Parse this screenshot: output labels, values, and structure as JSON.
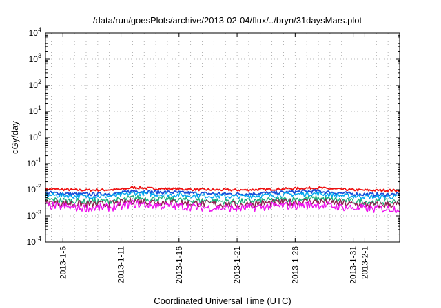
{
  "chart_data": {
    "type": "line",
    "title": "/data/run/goesPlots/archive/2013-02-04/flux/../bryn/31daysMars.plot",
    "xlabel": "Coordinated Universal Time (UTC)",
    "ylabel": "cGy/day",
    "yscale": "log",
    "ylim": [
      0.0001,
      10000
    ],
    "y_ticks": [
      {
        "base": "10",
        "exp": "-4"
      },
      {
        "base": "10",
        "exp": "-3"
      },
      {
        "base": "10",
        "exp": "-2"
      },
      {
        "base": "10",
        "exp": "-1"
      },
      {
        "base": "10",
        "exp": "0"
      },
      {
        "base": "10",
        "exp": "1"
      },
      {
        "base": "10",
        "exp": "2"
      },
      {
        "base": "10",
        "exp": "3"
      },
      {
        "base": "10",
        "exp": "4"
      }
    ],
    "xlim": [
      "2013-01-04T12:00",
      "2013-02-04T00:00"
    ],
    "x_ticks": [
      {
        "label": "2013-1-6",
        "date": "2013-01-06"
      },
      {
        "label": "2013-1-11",
        "date": "2013-01-11"
      },
      {
        "label": "2013-1-16",
        "date": "2013-01-16"
      },
      {
        "label": "2013-1-21",
        "date": "2013-01-21"
      },
      {
        "label": "2013-1-26",
        "date": "2013-01-26"
      },
      {
        "label": "2013-1-31",
        "date": "2013-01-31"
      },
      {
        "label": "2013-2-1",
        "date": "2013-02-01"
      }
    ],
    "grid": true,
    "grid_style": "dotted",
    "legend": "none",
    "x_sample_dates": [
      "2013-01-05",
      "2013-01-06",
      "2013-01-07",
      "2013-01-08",
      "2013-01-09",
      "2013-01-10",
      "2013-01-11",
      "2013-01-12",
      "2013-01-13",
      "2013-01-14",
      "2013-01-15",
      "2013-01-16",
      "2013-01-17",
      "2013-01-18",
      "2013-01-19",
      "2013-01-20",
      "2013-01-21",
      "2013-01-22",
      "2013-01-23",
      "2013-01-24",
      "2013-01-25",
      "2013-01-26",
      "2013-01-27",
      "2013-01-28",
      "2013-01-29",
      "2013-01-30",
      "2013-01-31",
      "2013-02-01",
      "2013-02-02",
      "2013-02-03"
    ],
    "series": [
      {
        "color": "#ee1111",
        "values": [
          0.0105,
          0.0102,
          0.0098,
          0.0096,
          0.0097,
          0.0099,
          0.0103,
          0.0122,
          0.0115,
          0.011,
          0.0108,
          0.0106,
          0.0102,
          0.0101,
          0.0099,
          0.0098,
          0.0097,
          0.0099,
          0.0102,
          0.0104,
          0.0108,
          0.0112,
          0.0115,
          0.0118,
          0.0108,
          0.0103,
          0.0098,
          0.0096,
          0.0094,
          0.0095
        ]
      },
      {
        "color": "#1a4fd8",
        "values": [
          0.0075,
          0.0072,
          0.0069,
          0.0067,
          0.0068,
          0.007,
          0.0074,
          0.009,
          0.0086,
          0.0082,
          0.008,
          0.0078,
          0.0074,
          0.0072,
          0.007,
          0.0069,
          0.0068,
          0.007,
          0.0073,
          0.0075,
          0.0079,
          0.0083,
          0.0085,
          0.0088,
          0.0079,
          0.0074,
          0.0069,
          0.0067,
          0.0065,
          0.0066
        ]
      },
      {
        "color": "#00a7ef",
        "values": [
          0.0062,
          0.006,
          0.0057,
          0.0055,
          0.0056,
          0.0058,
          0.0061,
          0.0074,
          0.007,
          0.0067,
          0.0065,
          0.0063,
          0.006,
          0.0059,
          0.0057,
          0.0056,
          0.0055,
          0.0057,
          0.0059,
          0.0061,
          0.0064,
          0.0067,
          0.0069,
          0.0071,
          0.0064,
          0.006,
          0.0056,
          0.0055,
          0.0053,
          0.0054
        ]
      },
      {
        "color": "#19b07d",
        "values": [
          0.0041,
          0.0039,
          0.0037,
          0.0035,
          0.0036,
          0.0037,
          0.004,
          0.0049,
          0.0046,
          0.0044,
          0.0043,
          0.0041,
          0.0039,
          0.0038,
          0.0037,
          0.0036,
          0.0035,
          0.0037,
          0.0038,
          0.004,
          0.0042,
          0.0044,
          0.0045,
          0.0047,
          0.0042,
          0.0039,
          0.0036,
          0.0035,
          0.0034,
          0.0035
        ]
      },
      {
        "color": "#8f1f4f",
        "values": [
          0.0032,
          0.003,
          0.0029,
          0.0028,
          0.0028,
          0.0029,
          0.0031,
          0.0038,
          0.0036,
          0.0034,
          0.0033,
          0.0032,
          0.003,
          0.0029,
          0.0028,
          0.0028,
          0.0027,
          0.0028,
          0.003,
          0.0031,
          0.0033,
          0.0034,
          0.0035,
          0.0036,
          0.0033,
          0.003,
          0.0028,
          0.0027,
          0.0026,
          0.0027
        ]
      },
      {
        "color": "#ee11ee",
        "values": [
          0.0024,
          0.0022,
          0.0021,
          0.002,
          0.002,
          0.0021,
          0.0023,
          0.0029,
          0.0027,
          0.0025,
          0.0024,
          0.0023,
          0.0022,
          0.0021,
          0.002,
          0.002,
          0.0019,
          0.002,
          0.0022,
          0.0023,
          0.0024,
          0.0025,
          0.0026,
          0.0027,
          0.0024,
          0.0022,
          0.002,
          0.0019,
          0.0018,
          0.0019
        ]
      }
    ]
  }
}
